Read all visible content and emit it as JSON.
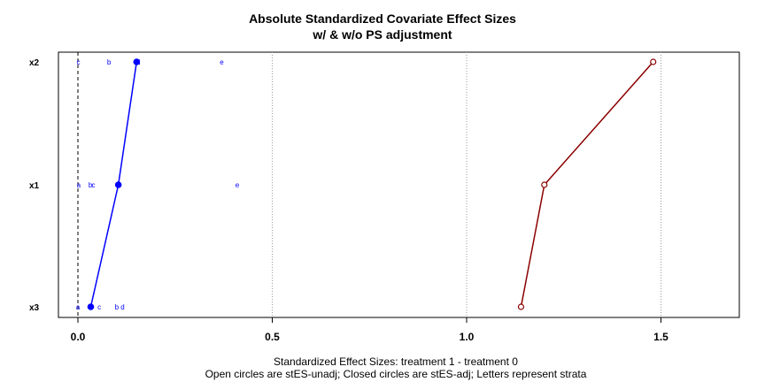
{
  "chart_data": {
    "type": "scatter",
    "title": "Absolute Standardized Covariate Effect Sizes",
    "subtitle": "w/ & w/o PS adjustment",
    "xlabel": "Standardized Effect Sizes: treatment 1 - treatment  0",
    "xlabel2": "Open circles are stES-unadj; Closed circles are stES-adj; Letters represent strata",
    "xlim": [
      -0.1,
      1.7
    ],
    "xticks": [
      0.0,
      0.5,
      1.0,
      1.5
    ],
    "xtick_labels": [
      "0.0",
      "0.5",
      "1.0",
      "1.5"
    ],
    "grid_x": [
      0.5,
      1.0,
      1.5
    ],
    "reference_line_x": 0,
    "covariates": [
      "x2",
      "x1",
      "x3"
    ],
    "series": [
      {
        "name": "stES-adj",
        "marker": "closed-circle",
        "color": "#0000ff",
        "values": [
          0.151,
          0.104,
          0.033
        ]
      },
      {
        "name": "stES-unadj",
        "marker": "open-circle",
        "color": "#8b0000",
        "values": [
          1.48,
          1.2,
          1.14
        ]
      }
    ],
    "strata_letters": [
      {
        "covariate": "x2",
        "points": [
          {
            "label": "a",
            "x": 0.155
          },
          {
            "label": "b",
            "x": 0.08
          },
          {
            "label": "c",
            "x": 0.001
          },
          {
            "label": "d",
            "x": 0.155
          },
          {
            "label": "e",
            "x": 0.37
          }
        ]
      },
      {
        "covariate": "x1",
        "points": [
          {
            "label": "a",
            "x": 0.002
          },
          {
            "label": "b",
            "x": 0.032
          },
          {
            "label": "c",
            "x": 0.04
          },
          {
            "label": "d",
            "x": 0.104
          },
          {
            "label": "e",
            "x": 0.41
          }
        ]
      },
      {
        "covariate": "x3",
        "points": [
          {
            "label": "a",
            "x": 0.0
          },
          {
            "label": "b",
            "x": 0.1
          },
          {
            "label": "c",
            "x": 0.055
          },
          {
            "label": "d",
            "x": 0.115
          }
        ]
      }
    ]
  }
}
